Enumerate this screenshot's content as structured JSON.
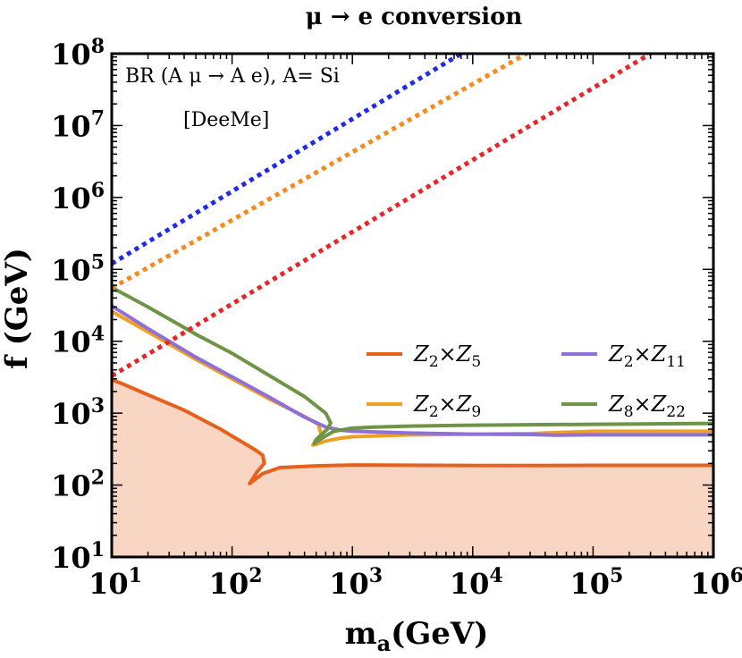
{
  "chart_data": {
    "type": "line",
    "title": "μ → e conversion",
    "xlabel": "m_a(GeV)",
    "xlabel_main": "m",
    "xlabel_sub": "a",
    "xlabel_unit": "(GeV)",
    "ylabel": "f (GeV)",
    "xscale": "log",
    "yscale": "log",
    "xlim": [
      10,
      1000000
    ],
    "ylim": [
      10,
      100000000
    ],
    "x_ticks": [
      {
        "value": 10,
        "base": "10",
        "exp": "1"
      },
      {
        "value": 100,
        "base": "10",
        "exp": "2"
      },
      {
        "value": 1000,
        "base": "10",
        "exp": "3"
      },
      {
        "value": 10000,
        "base": "10",
        "exp": "4"
      },
      {
        "value": 100000,
        "base": "10",
        "exp": "5"
      },
      {
        "value": 1000000,
        "base": "10",
        "exp": "6"
      }
    ],
    "y_ticks": [
      {
        "value": 10,
        "base": "10",
        "exp": "1"
      },
      {
        "value": 100,
        "base": "10",
        "exp": "2"
      },
      {
        "value": 1000,
        "base": "10",
        "exp": "3"
      },
      {
        "value": 10000,
        "base": "10",
        "exp": "4"
      },
      {
        "value": 100000,
        "base": "10",
        "exp": "5"
      },
      {
        "value": 1000000,
        "base": "10",
        "exp": "6"
      },
      {
        "value": 10000000,
        "base": "10",
        "exp": "7"
      },
      {
        "value": 100000000,
        "base": "10",
        "exp": "8"
      }
    ],
    "annotation": {
      "line1": "BR (A μ → A e), A= Si",
      "line2": "[DeeMe]",
      "placement": "top-left"
    },
    "legend": {
      "placement": "center-right",
      "entries": [
        {
          "base": "Z",
          "s1": "2",
          "times": "×",
          "s2": "5",
          "color": "#E8601C"
        },
        {
          "base": "Z",
          "s1": "2",
          "times": "×",
          "s2": "11",
          "color": "#8F6FD8"
        },
        {
          "base": "Z",
          "s1": "2",
          "times": "×",
          "s2": "9",
          "color": "#F0A020"
        },
        {
          "base": "Z",
          "s1": "8",
          "times": "×",
          "s2": "22",
          "color": "#6E9446"
        }
      ]
    },
    "shaded_region": {
      "name": "Z2×Z5 excluded region",
      "color": "#F9D5C3",
      "bounded_by": "Z2×Z5"
    },
    "series": [
      {
        "name": "Z2×Z5",
        "color": "#E8601C",
        "style": "solid",
        "x": [
          10,
          12,
          20,
          40,
          80,
          130,
          160,
          180,
          185,
          160,
          140,
          180,
          250,
          500,
          1000,
          5000,
          20000,
          100000,
          1000000
        ],
        "y": [
          2900,
          2600,
          1800,
          1100,
          600,
          370,
          300,
          260,
          200,
          150,
          105,
          145,
          175,
          185,
          190,
          188,
          187,
          188,
          188
        ]
      },
      {
        "name": "Z2×Z9",
        "color": "#F0A020",
        "style": "solid",
        "x": [
          10,
          20,
          50,
          100,
          200,
          400,
          520,
          560,
          470,
          500,
          600,
          800,
          1000,
          3000,
          10000,
          30000,
          100000,
          1000000
        ],
        "y": [
          26000,
          13500,
          5600,
          3000,
          1600,
          900,
          700,
          460,
          360,
          370,
          410,
          450,
          470,
          500,
          510,
          520,
          560,
          560
        ]
      },
      {
        "name": "Z2×Z11",
        "color": "#8F6FD8",
        "style": "solid",
        "x": [
          10,
          20,
          50,
          100,
          200,
          400,
          600,
          800,
          1000,
          3000,
          10000,
          30000,
          50000,
          100000,
          1000000
        ],
        "y": [
          31000,
          15000,
          6000,
          3200,
          1700,
          880,
          640,
          580,
          560,
          530,
          510,
          505,
          495,
          500,
          500
        ]
      },
      {
        "name": "Z8×Z22",
        "color": "#6E9446",
        "style": "solid",
        "x": [
          10,
          20,
          50,
          100,
          200,
          400,
          600,
          660,
          620,
          500,
          480,
          560,
          700,
          1000,
          1500,
          3000,
          10000,
          100000,
          1000000
        ],
        "y": [
          56000,
          30000,
          12500,
          6800,
          3400,
          1700,
          1000,
          730,
          600,
          430,
          380,
          450,
          560,
          620,
          640,
          660,
          680,
          700,
          720
        ]
      },
      {
        "name": "blue dotted",
        "color": "#1F2BE6",
        "style": "dotted",
        "x": [
          10,
          8000
        ],
        "y": [
          120000,
          100000000
        ]
      },
      {
        "name": "orange dotted",
        "color": "#F58A1F",
        "style": "dotted",
        "x": [
          10,
          28000
        ],
        "y": [
          55000,
          100000000
        ]
      },
      {
        "name": "red dotted",
        "color": "#E8262A",
        "style": "dotted",
        "x": [
          10,
          300000
        ],
        "y": [
          3300,
          100000000
        ]
      }
    ]
  }
}
